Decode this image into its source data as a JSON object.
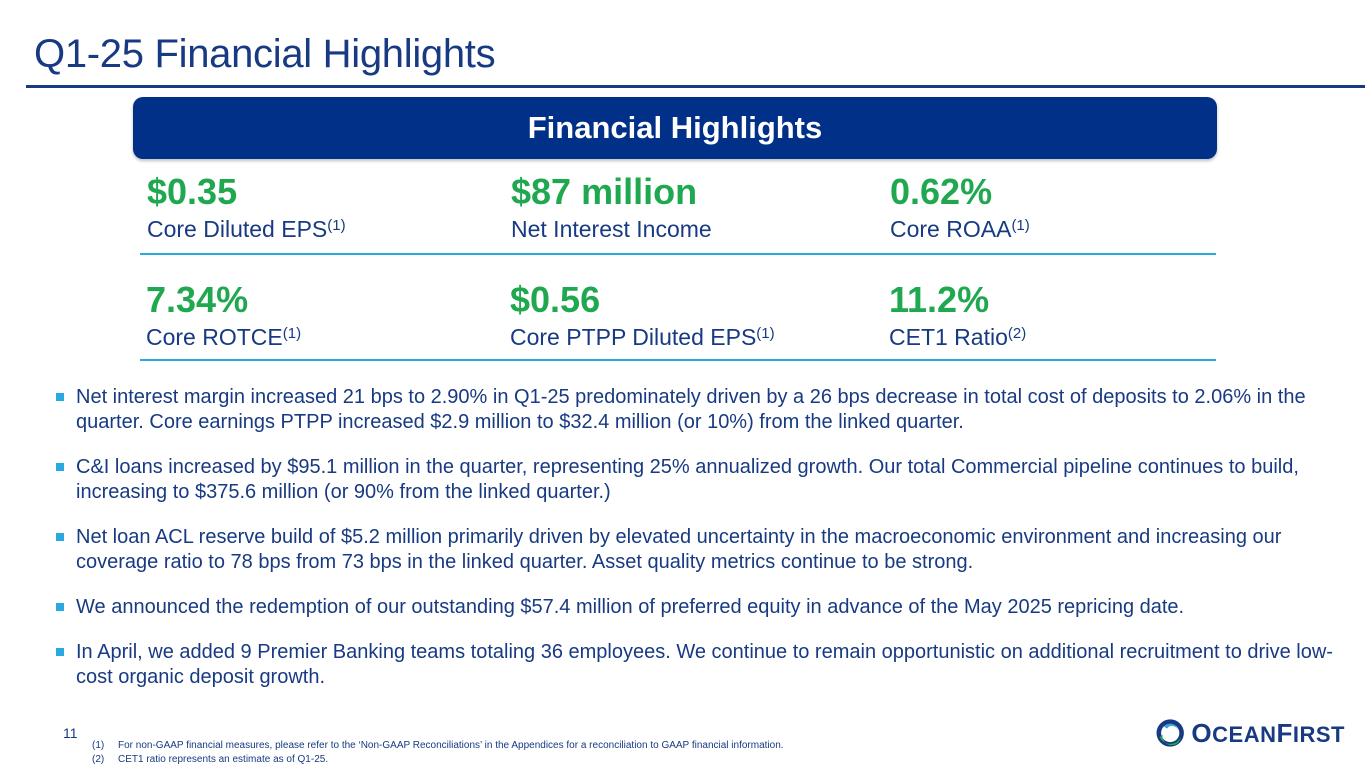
{
  "title": "Q1-25 Financial Highlights",
  "banner": "Financial Highlights",
  "metrics": [
    {
      "value": "$0.35",
      "label": "Core Diluted EPS",
      "sup": "(1)"
    },
    {
      "value": "$87 million",
      "label": "Net Interest Income",
      "sup": ""
    },
    {
      "value": "0.62%",
      "label": "Core ROAA",
      "sup": "(1)"
    },
    {
      "value": "7.34%",
      "label": "Core ROTCE",
      "sup": "(1)"
    },
    {
      "value": "$0.56",
      "label": "Core PTPP Diluted EPS",
      "sup": "(1)"
    },
    {
      "value": "11.2%",
      "label": "CET1 Ratio",
      "sup": "(2)"
    }
  ],
  "bullets": [
    "Net interest margin increased 21 bps to 2.90% in Q1-25 predominately driven by a 26 bps decrease in total cost of deposits to 2.06% in the quarter. Core earnings PTPP increased $2.9 million to $32.4 million (or 10%) from the linked quarter.",
    "C&I loans increased by $95.1 million in the quarter, representing 25% annualized growth. Our total Commercial pipeline continues to build, increasing to $375.6 million (or 90% from the linked quarter.)",
    "Net loan ACL reserve build of $5.2 million primarily driven by elevated uncertainty in the macroeconomic environment and increasing our coverage ratio to 78 bps from 73 bps in the linked quarter. Asset quality metrics continue to be strong.",
    "We announced the redemption of our outstanding $57.4 million of preferred equity in advance of the May 2025 repricing date.",
    "In April, we added 9 Premier Banking teams totaling 36 employees. We continue to remain opportunistic on additional recruitment to drive low-cost organic deposit growth."
  ],
  "page_number": "11",
  "footnotes": [
    {
      "num": "(1)",
      "text": "For non-GAAP financial measures, please refer to the ‘Non-GAAP Reconciliations’ in the Appendices for a reconciliation to GAAP financial information."
    },
    {
      "num": "(2)",
      "text": "CET1 ratio represents an estimate as of Q1-25."
    }
  ],
  "logo": {
    "first": "O",
    "rest1": "CEAN",
    "big2": "F",
    "rest2": "IRST"
  }
}
